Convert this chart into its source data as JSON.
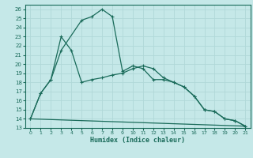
{
  "title": "",
  "xlabel": "Humidex (Indice chaleur)",
  "bg_color": "#c5e8e8",
  "grid_color": "#b0d8d8",
  "line_color": "#1a6b5a",
  "xlim": [
    -0.5,
    21.5
  ],
  "ylim": [
    13,
    26.5
  ],
  "xticks": [
    0,
    1,
    2,
    3,
    4,
    5,
    6,
    7,
    8,
    9,
    10,
    11,
    12,
    13,
    14,
    15,
    16,
    17,
    18,
    19,
    20,
    21
  ],
  "yticks": [
    13,
    14,
    15,
    16,
    17,
    18,
    19,
    20,
    21,
    22,
    23,
    24,
    25,
    26
  ],
  "series1_x": [
    0,
    1,
    2,
    3,
    5,
    6,
    7,
    8,
    9,
    10,
    11,
    12,
    13,
    14,
    15,
    16,
    17,
    18,
    19,
    20,
    21
  ],
  "series1_y": [
    14.0,
    16.8,
    18.3,
    21.5,
    24.8,
    25.2,
    26.0,
    25.2,
    19.2,
    19.8,
    19.5,
    18.3,
    18.3,
    18.0,
    17.5,
    16.5,
    15.0,
    14.8,
    14.0,
    13.8,
    13.2
  ],
  "series2_x": [
    0,
    1,
    2,
    3,
    4,
    5,
    6,
    7,
    8,
    9,
    10,
    11,
    12,
    13,
    14,
    15,
    16,
    17,
    18,
    19,
    20,
    21
  ],
  "series2_y": [
    14.0,
    16.8,
    18.3,
    23.0,
    21.5,
    18.0,
    18.3,
    18.5,
    18.8,
    19.0,
    19.5,
    19.8,
    19.5,
    18.5,
    18.0,
    17.5,
    16.5,
    15.0,
    14.8,
    14.0,
    13.8,
    13.2
  ],
  "series3_x": [
    0,
    21
  ],
  "series3_y": [
    14.0,
    13.2
  ]
}
